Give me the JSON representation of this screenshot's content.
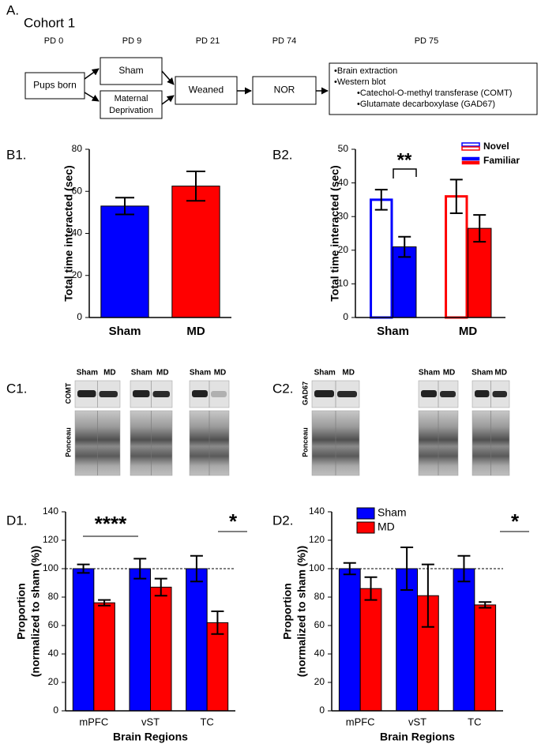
{
  "panel_a": {
    "label": "A.",
    "title": "Cohort 1",
    "timepoints": [
      "PD 0",
      "PD 9",
      "PD 21",
      "PD 74",
      "PD 75"
    ],
    "boxes": {
      "pups": "Pups born",
      "sham": "Sham",
      "md": [
        "Maternal",
        "Deprivation"
      ],
      "weaned": "Weaned",
      "nor": "NOR",
      "procedures": [
        "•Brain extraction",
        "•Western blot",
        "•Catechol-O-methyl transferase (COMT)",
        "•Glutamate decarboxylase (GAD67)"
      ]
    }
  },
  "chart_data": [
    {
      "type": "bar",
      "panel_label": "B1.",
      "ylabel": "Total time interacted (sec)",
      "categories": [
        "Sham",
        "MD"
      ],
      "category_colors": [
        "#0000ff",
        "#ff0000"
      ],
      "values": [
        53,
        62.5
      ],
      "errors": [
        4,
        7
      ],
      "ylim": [
        0,
        80
      ],
      "yticks": [
        0,
        20,
        40,
        60,
        80
      ]
    },
    {
      "type": "bar",
      "panel_label": "B2.",
      "ylabel": "Total time interacted (sec)",
      "categories": [
        "Sham",
        "MD"
      ],
      "category_colors": [
        "#0000ff",
        "#ff0000"
      ],
      "series": [
        {
          "name": "Novel",
          "fill": "outline",
          "values": [
            35,
            36
          ],
          "errors": [
            3,
            5
          ]
        },
        {
          "name": "Familiar",
          "fill": "solid",
          "values": [
            21,
            26.5
          ],
          "errors": [
            3,
            4
          ]
        }
      ],
      "legend": "upper right",
      "annotations": [
        "**"
      ],
      "ylim": [
        0,
        50
      ],
      "yticks": [
        0,
        10,
        20,
        30,
        40,
        50
      ]
    },
    {
      "type": "bar",
      "panel_label": "D1.",
      "ylabel": [
        "Proportion",
        "(normalized to sham (%))"
      ],
      "xlabel": "Brain Regions",
      "categories": [
        "mPFC",
        "vST",
        "TC"
      ],
      "series": [
        {
          "color": "#0000ff",
          "values": [
            100,
            100,
            100
          ],
          "errors": [
            3,
            7,
            9
          ]
        },
        {
          "color": "#ff0000",
          "values": [
            76,
            87,
            62
          ],
          "errors": [
            2,
            6,
            8
          ]
        }
      ],
      "reference_line": 100,
      "annotations": [
        "****",
        "*"
      ],
      "ylim": [
        0,
        140
      ],
      "yticks": [
        0,
        20,
        40,
        60,
        80,
        100,
        120,
        140
      ]
    },
    {
      "type": "bar",
      "panel_label": "D2.",
      "ylabel": [
        "Proportion",
        "(normalized to sham (%))"
      ],
      "xlabel": "Brain Regions",
      "categories": [
        "mPFC",
        "vST",
        "TC"
      ],
      "series": [
        {
          "name": "Sham",
          "color": "#0000ff",
          "values": [
            100,
            100,
            100
          ],
          "errors": [
            4,
            15,
            9
          ]
        },
        {
          "name": "MD",
          "color": "#ff0000",
          "values": [
            86,
            81,
            74.5
          ],
          "errors": [
            8,
            22,
            2
          ]
        }
      ],
      "legend": "upper left",
      "reference_line": 100,
      "annotations": [
        "*"
      ],
      "ylim": [
        0,
        140
      ],
      "yticks": [
        0,
        20,
        40,
        60,
        80,
        100,
        120,
        140
      ]
    }
  ],
  "blots": [
    {
      "label": "C1.",
      "lanes": [
        [
          "Sham",
          "MD"
        ],
        [
          "Sham",
          "MD"
        ],
        [
          "Sham",
          "MD"
        ]
      ],
      "protein": "COMT",
      "loading": "Ponceau"
    },
    {
      "label": "C2.",
      "lanes": [
        [
          "Sham",
          "MD"
        ],
        [
          "Sham",
          "MD"
        ],
        [
          "Sham",
          "MD"
        ]
      ],
      "protein": "GAD67",
      "loading": "Ponceau"
    }
  ]
}
